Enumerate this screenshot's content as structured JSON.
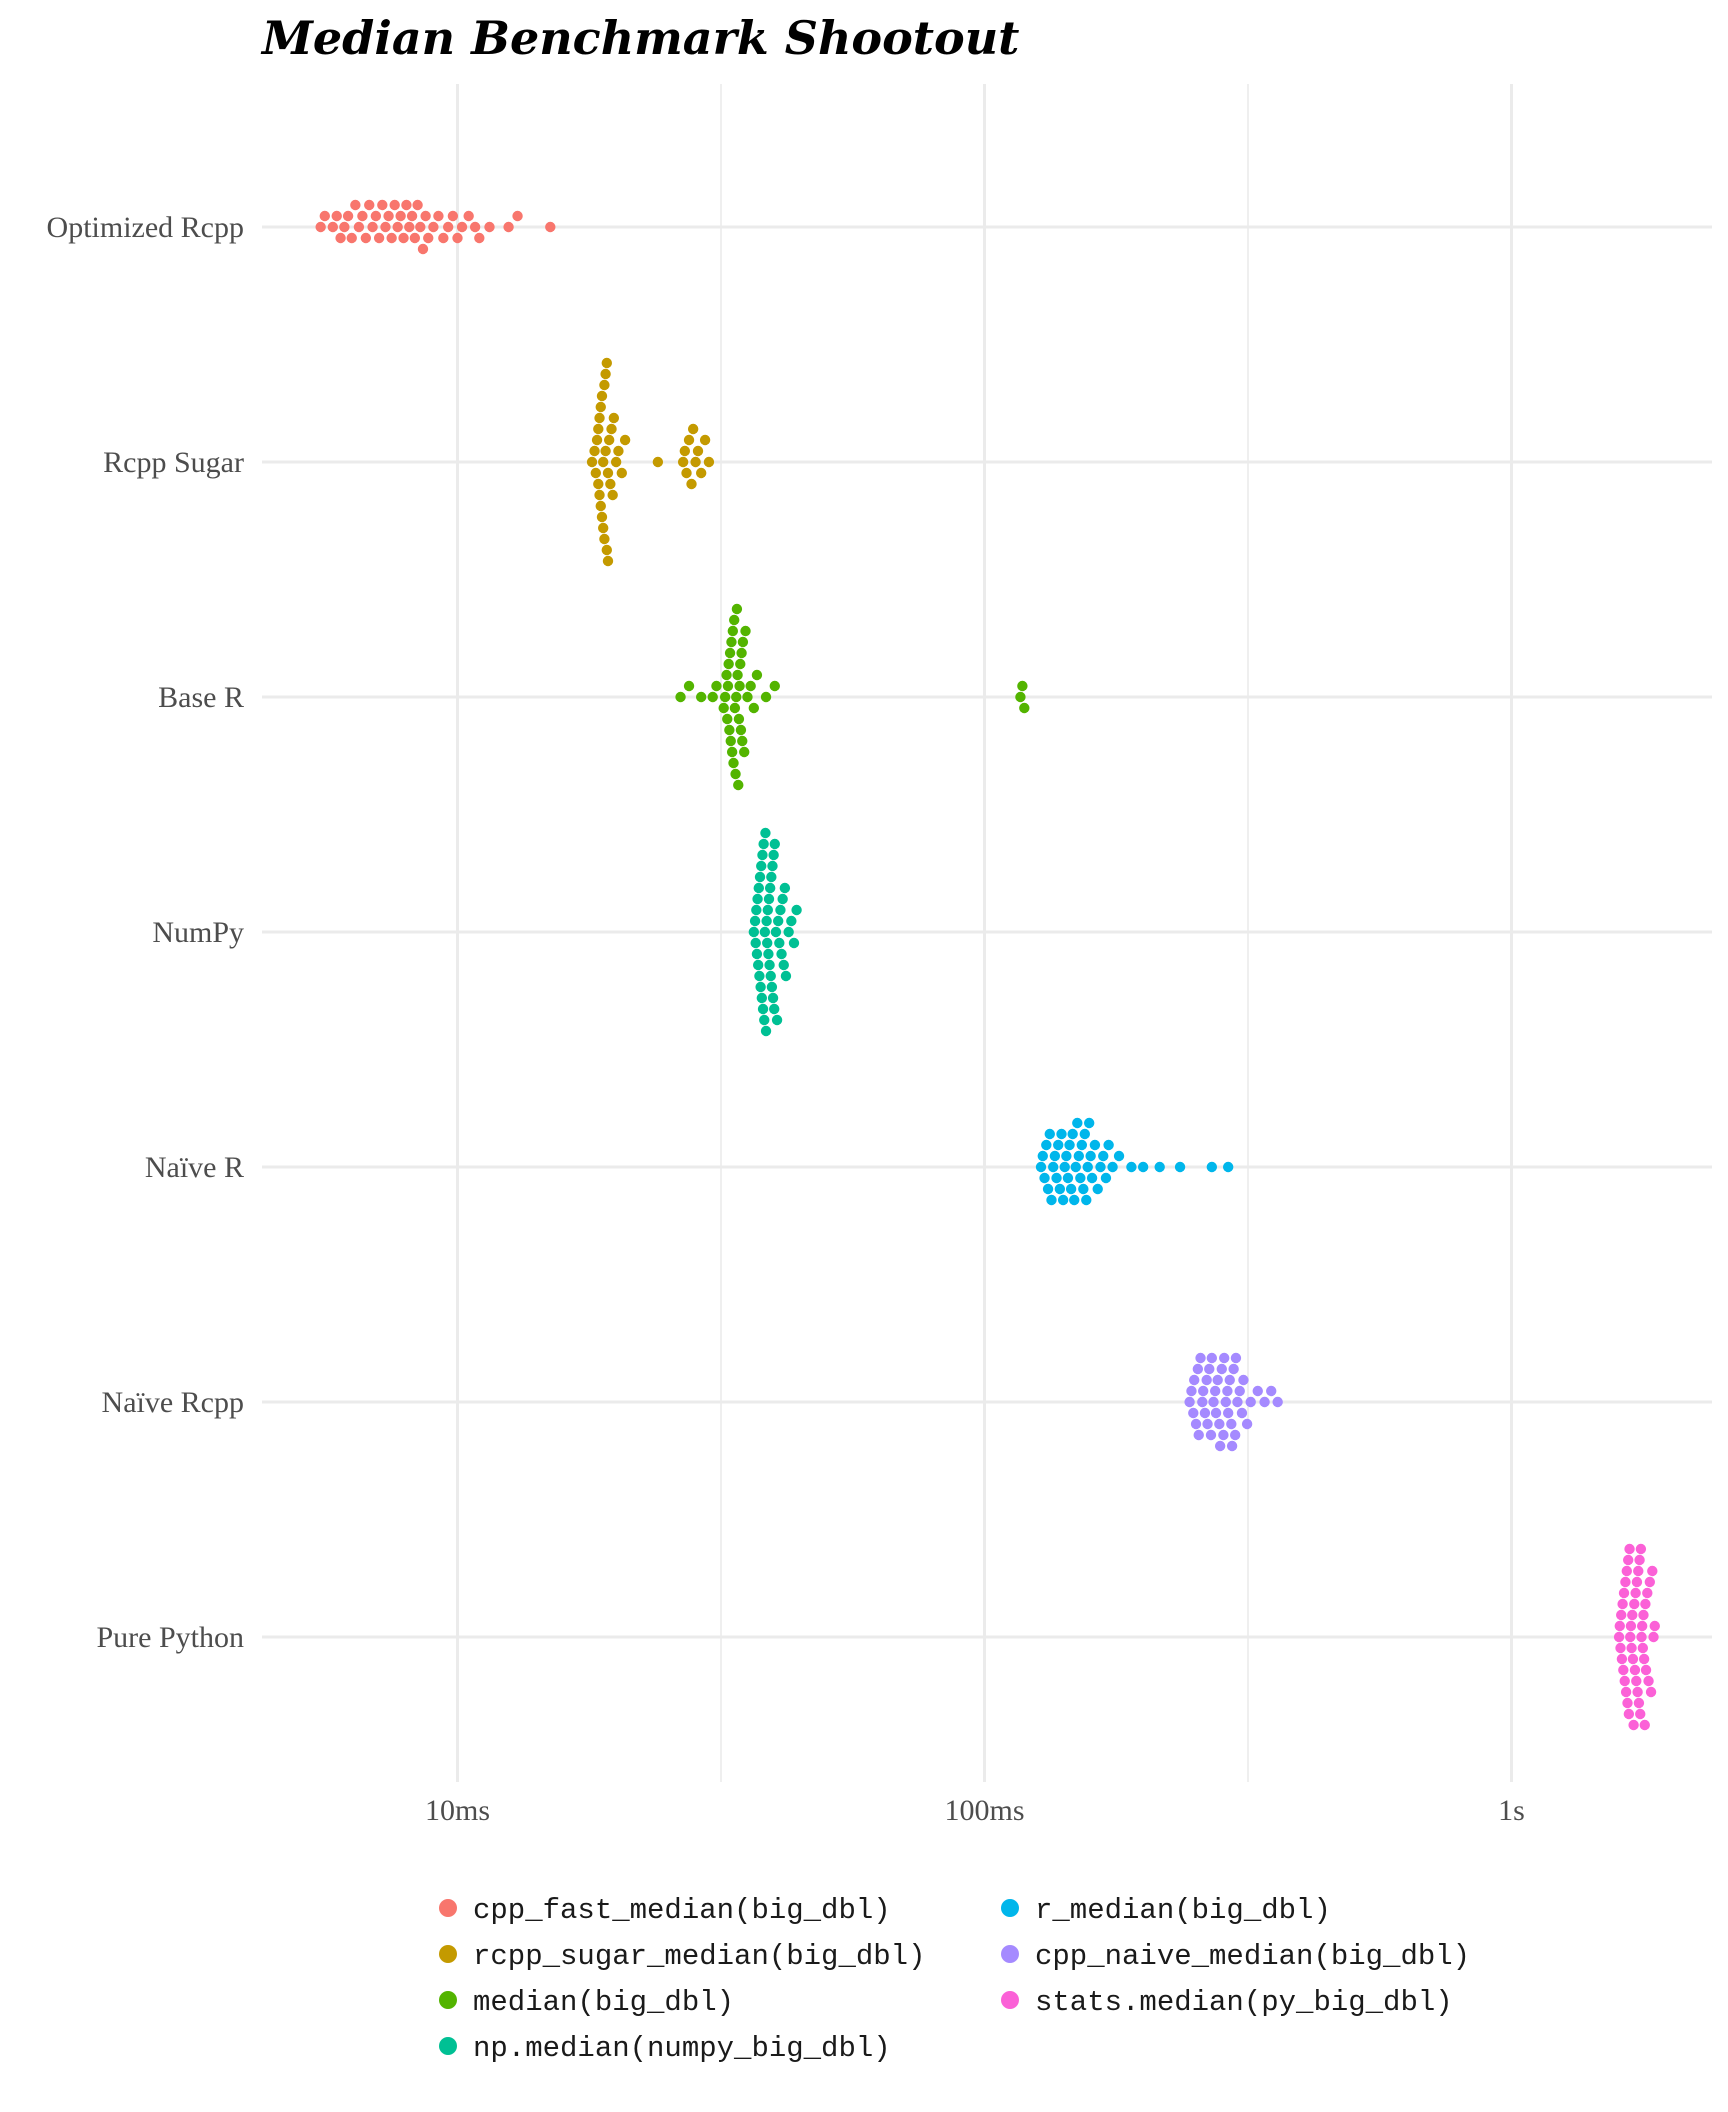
{
  "chart_data": {
    "type": "scatter",
    "subtype": "beeswarm",
    "title": "Median Benchmark Shootout",
    "xlabel": "",
    "ylabel": "",
    "x_scale": "log10",
    "x_unit": "seconds",
    "xlim": [
      0.0046,
      3.5
    ],
    "x_ticks": [
      {
        "value": 0.01,
        "label": "10ms"
      },
      {
        "value": 0.1,
        "label": "100ms"
      },
      {
        "value": 1,
        "label": "1s"
      }
    ],
    "categories": [
      "Optimized Rcpp",
      "Rcpp Sugar",
      "Base R",
      "NumPy",
      "Naïve R",
      "Naïve Rcpp",
      "Pure Python"
    ],
    "grid": true,
    "legend_position": "bottom",
    "series": [
      {
        "name": "cpp_fast_median(big_dbl)",
        "category": "Optimized Rcpp",
        "color": "#F8766D",
        "values": [
          0.0055,
          0.0056,
          0.0058,
          0.0059,
          0.006,
          0.0061,
          0.0062,
          0.0063,
          0.0064,
          0.0065,
          0.0066,
          0.0067,
          0.0068,
          0.0069,
          0.007,
          0.0071,
          0.0072,
          0.0073,
          0.0074,
          0.0075,
          0.0076,
          0.0077,
          0.0078,
          0.0079,
          0.008,
          0.0081,
          0.0082,
          0.0083,
          0.0084,
          0.0085,
          0.0086,
          0.0087,
          0.0088,
          0.009,
          0.0092,
          0.0094,
          0.0096,
          0.0098,
          0.01,
          0.0102,
          0.0105,
          0.0108,
          0.011,
          0.0115,
          0.0125,
          0.013,
          0.015
        ]
      },
      {
        "name": "rcpp_sugar_median(big_dbl)",
        "category": "Rcpp Sugar",
        "color": "#C49A00",
        "values": [
          0.018,
          0.0182,
          0.0183,
          0.0184,
          0.0185,
          0.0185,
          0.0186,
          0.0186,
          0.0187,
          0.0187,
          0.0188,
          0.0188,
          0.0189,
          0.0189,
          0.019,
          0.019,
          0.0191,
          0.0191,
          0.0192,
          0.0192,
          0.0193,
          0.0193,
          0.0194,
          0.0195,
          0.0196,
          0.0197,
          0.0198,
          0.02,
          0.0202,
          0.0205,
          0.0208,
          0.024,
          0.0268,
          0.027,
          0.0272,
          0.0275,
          0.0278,
          0.028,
          0.0283,
          0.0286,
          0.029,
          0.0295,
          0.03
        ]
      },
      {
        "name": "median(big_dbl)",
        "category": "Base R",
        "color": "#53B400",
        "values": [
          0.0265,
          0.0275,
          0.029,
          0.0305,
          0.031,
          0.032,
          0.0322,
          0.0324,
          0.0325,
          0.0326,
          0.0327,
          0.0328,
          0.0329,
          0.033,
          0.0331,
          0.0332,
          0.0333,
          0.0334,
          0.0335,
          0.0336,
          0.0337,
          0.0338,
          0.0339,
          0.034,
          0.0341,
          0.0342,
          0.0343,
          0.0344,
          0.0345,
          0.0346,
          0.0347,
          0.0348,
          0.035,
          0.0352,
          0.0355,
          0.036,
          0.0365,
          0.037,
          0.0385,
          0.04,
          0.117,
          0.118,
          0.119
        ]
      },
      {
        "name": "np.median(numpy_big_dbl)",
        "category": "NumPy",
        "color": "#00C094",
        "values": [
          0.0365,
          0.0367,
          0.0368,
          0.0369,
          0.037,
          0.0371,
          0.0372,
          0.0373,
          0.0374,
          0.0375,
          0.0376,
          0.0377,
          0.0378,
          0.0379,
          0.038,
          0.0381,
          0.0382,
          0.0383,
          0.0384,
          0.0385,
          0.0386,
          0.0387,
          0.0388,
          0.0389,
          0.039,
          0.0391,
          0.0392,
          0.0393,
          0.0394,
          0.0395,
          0.0396,
          0.0397,
          0.0398,
          0.0399,
          0.04,
          0.0402,
          0.0404,
          0.0406,
          0.0408,
          0.041,
          0.0412,
          0.0414,
          0.0416,
          0.0418,
          0.042,
          0.0425,
          0.043,
          0.0435,
          0.044
        ]
      },
      {
        "name": "r_median(big_dbl)",
        "category": "Naïve R",
        "color": "#00B6EB",
        "values": [
          0.128,
          0.129,
          0.13,
          0.131,
          0.132,
          0.133,
          0.134,
          0.135,
          0.136,
          0.137,
          0.138,
          0.139,
          0.14,
          0.141,
          0.142,
          0.143,
          0.144,
          0.145,
          0.146,
          0.147,
          0.148,
          0.149,
          0.15,
          0.151,
          0.152,
          0.153,
          0.154,
          0.155,
          0.156,
          0.157,
          0.158,
          0.159,
          0.16,
          0.162,
          0.164,
          0.166,
          0.168,
          0.17,
          0.172,
          0.175,
          0.18,
          0.19,
          0.2,
          0.215,
          0.235,
          0.27,
          0.29
        ]
      },
      {
        "name": "cpp_naive_median(big_dbl)",
        "category": "Naïve Rcpp",
        "color": "#A58AFF",
        "values": [
          0.245,
          0.247,
          0.249,
          0.25,
          0.252,
          0.254,
          0.255,
          0.257,
          0.259,
          0.26,
          0.262,
          0.264,
          0.265,
          0.267,
          0.269,
          0.27,
          0.272,
          0.274,
          0.275,
          0.277,
          0.279,
          0.28,
          0.282,
          0.284,
          0.285,
          0.287,
          0.289,
          0.29,
          0.292,
          0.294,
          0.295,
          0.297,
          0.299,
          0.3,
          0.302,
          0.305,
          0.308,
          0.31,
          0.315,
          0.32,
          0.33,
          0.34,
          0.35,
          0.36
        ]
      },
      {
        "name": "stats.median(py_big_dbl)",
        "category": "Pure Python",
        "color": "#FB61D7",
        "values": [
          1.6,
          1.605,
          1.61,
          1.615,
          1.62,
          1.625,
          1.63,
          1.635,
          1.64,
          1.645,
          1.65,
          1.655,
          1.66,
          1.665,
          1.67,
          1.675,
          1.68,
          1.685,
          1.69,
          1.695,
          1.7,
          1.705,
          1.71,
          1.715,
          1.72,
          1.725,
          1.73,
          1.735,
          1.74,
          1.745,
          1.75,
          1.755,
          1.76,
          1.765,
          1.77,
          1.775,
          1.78,
          1.785,
          1.79,
          1.795,
          1.8,
          1.81,
          1.82,
          1.83,
          1.84,
          1.85,
          1.86,
          1.87
        ]
      }
    ],
    "legend": [
      {
        "label": "cpp_fast_median(big_dbl)",
        "color": "#F8766D"
      },
      {
        "label": "rcpp_sugar_median(big_dbl)",
        "color": "#C49A00"
      },
      {
        "label": "median(big_dbl)",
        "color": "#53B400"
      },
      {
        "label": "np.median(numpy_big_dbl)",
        "color": "#00C094"
      },
      {
        "label": "r_median(big_dbl)",
        "color": "#00B6EB"
      },
      {
        "label": "cpp_naive_median(big_dbl)",
        "color": "#A58AFF"
      },
      {
        "label": "stats.median(py_big_dbl)",
        "color": "#FB61D7"
      }
    ]
  }
}
